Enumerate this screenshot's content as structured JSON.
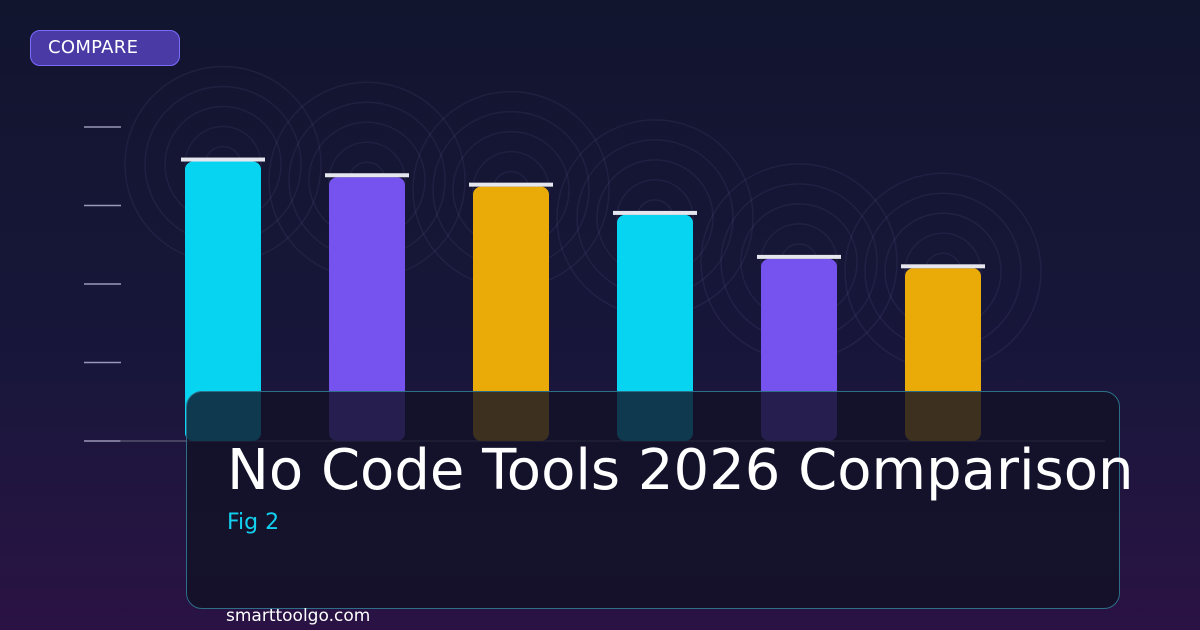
{
  "badge": {
    "label": "COMPARE"
  },
  "title": "No Code Tools 2026 Comparison",
  "subtitle": "Fig 2",
  "footer": "smarttoolgo.com",
  "colors": {
    "cyan": "#06d4f1",
    "purple": "#7652ef",
    "amber": "#eaaa08",
    "tick": "#9a98b8",
    "bar_cap": "#e6e6ee"
  },
  "chart_data": {
    "type": "bar",
    "title": "No Code Tools 2026 Comparison",
    "xlabel": "",
    "ylabel": "",
    "categories": [
      "",
      "",
      "",
      "",
      "",
      ""
    ],
    "values": [
      89,
      84,
      81,
      72,
      58,
      55
    ],
    "bar_colors": [
      "#06d4f1",
      "#7652ef",
      "#eaaa08",
      "#06d4f1",
      "#7652ef",
      "#eaaa08"
    ],
    "ylim": [
      0,
      100
    ],
    "y_ticks": [
      0,
      25,
      50,
      75,
      100
    ],
    "grid": false,
    "legend": "none"
  }
}
